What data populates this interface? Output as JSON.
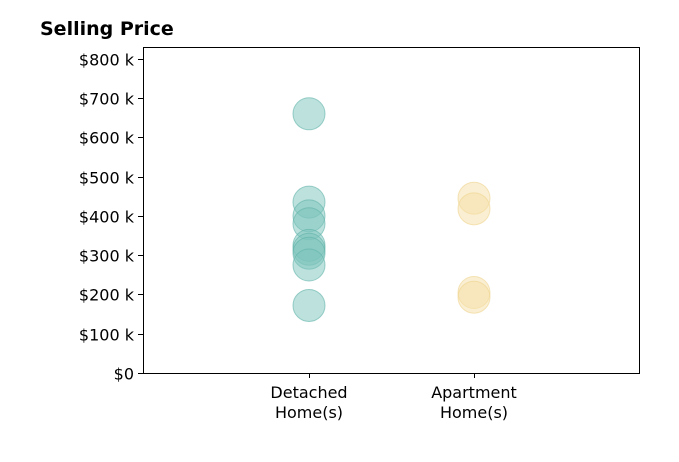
{
  "chart_data": {
    "type": "scatter",
    "title": "Selling Price",
    "xlabel": "",
    "ylabel": "",
    "categories": [
      [
        "Detached",
        "Home(s)"
      ],
      [
        "Apartment",
        "Home(s)"
      ]
    ],
    "ylim": [
      0,
      830000
    ],
    "yticks": [
      0,
      100000,
      200000,
      300000,
      400000,
      500000,
      600000,
      700000,
      800000
    ],
    "ytick_labels": [
      "$0",
      "$100 k",
      "$200 k",
      "$300 k",
      "$400 k",
      "$500 k",
      "$600 k",
      "$700 k",
      "$800 k"
    ],
    "grid": false,
    "series": [
      {
        "category_index": 0,
        "color": "#7cc4bb",
        "edge_color": "#5fb3a9",
        "values": [
          660000,
          435000,
          400000,
          380000,
          325000,
          315000,
          305000,
          275000,
          172000
        ]
      },
      {
        "category_index": 1,
        "color": "#f5dfa6",
        "edge_color": "#eed38e",
        "values": [
          445000,
          418000,
          205000,
          193000
        ]
      }
    ]
  }
}
